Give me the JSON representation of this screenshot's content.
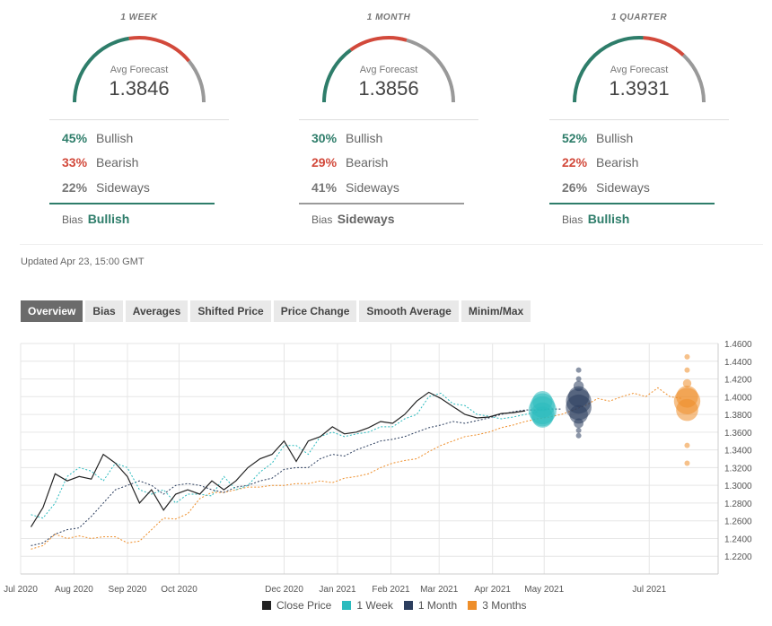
{
  "gauges": [
    {
      "period": "1 WEEK",
      "avg_label": "Avg Forecast",
      "avg_value": "1.3846",
      "bullish_pct": "45%",
      "bullish_label": "Bullish",
      "bearish_pct": "33%",
      "bearish_label": "Bearish",
      "sideways_pct": "22%",
      "sideways_label": "Sideways",
      "bias_label": "Bias",
      "bias_value": "Bullish",
      "bias_color": "#2e7d6a",
      "bias_rule_color": "#2e7d6a",
      "arc": [
        0.45,
        0.33,
        0.22
      ]
    },
    {
      "period": "1 MONTH",
      "avg_label": "Avg Forecast",
      "avg_value": "1.3856",
      "bullish_pct": "30%",
      "bullish_label": "Bullish",
      "bearish_pct": "29%",
      "bearish_label": "Bearish",
      "sideways_pct": "41%",
      "sideways_label": "Sideways",
      "bias_label": "Bias",
      "bias_value": "Sideways",
      "bias_color": "#666666",
      "bias_rule_color": "#9a9a9a",
      "arc": [
        0.3,
        0.29,
        0.41
      ]
    },
    {
      "period": "1 QUARTER",
      "avg_label": "Avg Forecast",
      "avg_value": "1.3931",
      "bullish_pct": "52%",
      "bullish_label": "Bullish",
      "bearish_pct": "22%",
      "bearish_label": "Bearish",
      "sideways_pct": "26%",
      "sideways_label": "Sideways",
      "bias_label": "Bias",
      "bias_value": "Bullish",
      "bias_color": "#2e7d6a",
      "bias_rule_color": "#2e7d6a",
      "arc": [
        0.52,
        0.22,
        0.26
      ]
    }
  ],
  "colors": {
    "bullish": "#2e7d6a",
    "bearish": "#d2493b",
    "sideways": "#999999"
  },
  "updated": "Updated Apr 23, 15:00 GMT",
  "tabs": [
    "Overview",
    "Bias",
    "Averages",
    "Shifted Price",
    "Price Change",
    "Smooth Average",
    "Minim/Max"
  ],
  "active_tab": "Overview",
  "chart_data": {
    "type": "line",
    "y_ticks": [
      "1.4600",
      "1.4400",
      "1.4200",
      "1.4000",
      "1.3800",
      "1.3600",
      "1.3400",
      "1.3200",
      "1.3000",
      "1.2800",
      "1.2600",
      "1.2400",
      "1.2200"
    ],
    "ylim": [
      1.2,
      1.46
    ],
    "x_tick_labels": [
      "Jul 2020",
      "Aug 2020",
      "Sep 2020",
      "Oct 2020",
      "Dec 2020",
      "Jan 2021",
      "Feb 2021",
      "Mar 2021",
      "Apr 2021",
      "May 2021",
      "Jul 2021"
    ],
    "x_tick_dates": [
      "2020-07-01",
      "2020-08-01",
      "2020-09-01",
      "2020-10-01",
      "2020-12-01",
      "2021-01-01",
      "2021-02-01",
      "2021-03-01",
      "2021-04-01",
      "2021-05-01",
      "2021-07-01"
    ],
    "xlim": [
      "2020-07-01",
      "2021-08-10"
    ],
    "grid": true,
    "series": [
      {
        "name": "Close Price",
        "color": "#222222",
        "dash": false,
        "points": [
          [
            "2020-07-07",
            1.253
          ],
          [
            "2020-07-14",
            1.275
          ],
          [
            "2020-07-21",
            1.313
          ],
          [
            "2020-07-28",
            1.305
          ],
          [
            "2020-08-04",
            1.31
          ],
          [
            "2020-08-11",
            1.307
          ],
          [
            "2020-08-18",
            1.335
          ],
          [
            "2020-08-25",
            1.325
          ],
          [
            "2020-09-01",
            1.31
          ],
          [
            "2020-09-08",
            1.28
          ],
          [
            "2020-09-15",
            1.295
          ],
          [
            "2020-09-22",
            1.272
          ],
          [
            "2020-09-29",
            1.29
          ],
          [
            "2020-10-06",
            1.295
          ],
          [
            "2020-10-13",
            1.29
          ],
          [
            "2020-10-20",
            1.305
          ],
          [
            "2020-10-27",
            1.295
          ],
          [
            "2020-11-03",
            1.305
          ],
          [
            "2020-11-10",
            1.32
          ],
          [
            "2020-11-17",
            1.33
          ],
          [
            "2020-11-24",
            1.335
          ],
          [
            "2020-12-01",
            1.35
          ],
          [
            "2020-12-08",
            1.327
          ],
          [
            "2020-12-15",
            1.35
          ],
          [
            "2020-12-22",
            1.355
          ],
          [
            "2020-12-29",
            1.366
          ],
          [
            "2021-01-05",
            1.358
          ],
          [
            "2021-01-12",
            1.36
          ],
          [
            "2021-01-19",
            1.365
          ],
          [
            "2021-01-26",
            1.372
          ],
          [
            "2021-02-02",
            1.37
          ],
          [
            "2021-02-09",
            1.38
          ],
          [
            "2021-02-16",
            1.395
          ],
          [
            "2021-02-23",
            1.405
          ],
          [
            "2021-03-02",
            1.398
          ],
          [
            "2021-03-09",
            1.389
          ],
          [
            "2021-03-16",
            1.38
          ],
          [
            "2021-03-23",
            1.376
          ],
          [
            "2021-03-30",
            1.377
          ],
          [
            "2021-04-06",
            1.381
          ],
          [
            "2021-04-13",
            1.382
          ],
          [
            "2021-04-20",
            1.384
          ]
        ]
      },
      {
        "name": "1 Week",
        "color": "#2bbbbe",
        "dash": true,
        "points": [
          [
            "2020-07-07",
            1.267
          ],
          [
            "2020-07-14",
            1.263
          ],
          [
            "2020-07-21",
            1.28
          ],
          [
            "2020-07-28",
            1.31
          ],
          [
            "2020-08-04",
            1.32
          ],
          [
            "2020-08-11",
            1.316
          ],
          [
            "2020-08-18",
            1.305
          ],
          [
            "2020-08-25",
            1.325
          ],
          [
            "2020-09-01",
            1.32
          ],
          [
            "2020-09-08",
            1.295
          ],
          [
            "2020-09-15",
            1.29
          ],
          [
            "2020-09-22",
            1.295
          ],
          [
            "2020-09-29",
            1.28
          ],
          [
            "2020-10-06",
            1.29
          ],
          [
            "2020-10-13",
            1.29
          ],
          [
            "2020-10-20",
            1.288
          ],
          [
            "2020-10-27",
            1.31
          ],
          [
            "2020-11-03",
            1.295
          ],
          [
            "2020-11-10",
            1.3
          ],
          [
            "2020-11-17",
            1.315
          ],
          [
            "2020-11-24",
            1.325
          ],
          [
            "2020-12-01",
            1.345
          ],
          [
            "2020-12-08",
            1.345
          ],
          [
            "2020-12-15",
            1.335
          ],
          [
            "2020-12-22",
            1.355
          ],
          [
            "2020-12-29",
            1.36
          ],
          [
            "2021-01-05",
            1.355
          ],
          [
            "2021-01-12",
            1.358
          ],
          [
            "2021-01-19",
            1.36
          ],
          [
            "2021-01-26",
            1.366
          ],
          [
            "2021-02-02",
            1.366
          ],
          [
            "2021-02-09",
            1.375
          ],
          [
            "2021-02-16",
            1.38
          ],
          [
            "2021-02-23",
            1.4
          ],
          [
            "2021-03-02",
            1.404
          ],
          [
            "2021-03-09",
            1.392
          ],
          [
            "2021-03-16",
            1.39
          ],
          [
            "2021-03-23",
            1.38
          ],
          [
            "2021-03-30",
            1.378
          ],
          [
            "2021-04-06",
            1.375
          ],
          [
            "2021-04-13",
            1.377
          ],
          [
            "2021-04-20",
            1.38
          ],
          [
            "2021-04-27",
            1.383
          ]
        ]
      },
      {
        "name": "1 Month",
        "color": "#2c3e5e",
        "dash": true,
        "points": [
          [
            "2020-07-07",
            1.232
          ],
          [
            "2020-07-14",
            1.235
          ],
          [
            "2020-07-21",
            1.245
          ],
          [
            "2020-07-28",
            1.25
          ],
          [
            "2020-08-04",
            1.252
          ],
          [
            "2020-08-11",
            1.265
          ],
          [
            "2020-08-18",
            1.28
          ],
          [
            "2020-08-25",
            1.295
          ],
          [
            "2020-09-01",
            1.3
          ],
          [
            "2020-09-08",
            1.305
          ],
          [
            "2020-09-15",
            1.3
          ],
          [
            "2020-09-22",
            1.29
          ],
          [
            "2020-09-29",
            1.3
          ],
          [
            "2020-10-06",
            1.302
          ],
          [
            "2020-10-13",
            1.3
          ],
          [
            "2020-10-20",
            1.295
          ],
          [
            "2020-10-27",
            1.292
          ],
          [
            "2020-11-03",
            1.298
          ],
          [
            "2020-11-10",
            1.3
          ],
          [
            "2020-11-17",
            1.305
          ],
          [
            "2020-11-24",
            1.308
          ],
          [
            "2020-12-01",
            1.318
          ],
          [
            "2020-12-08",
            1.32
          ],
          [
            "2020-12-15",
            1.32
          ],
          [
            "2020-12-22",
            1.33
          ],
          [
            "2020-12-29",
            1.335
          ],
          [
            "2021-01-05",
            1.333
          ],
          [
            "2021-01-12",
            1.34
          ],
          [
            "2021-01-19",
            1.345
          ],
          [
            "2021-01-26",
            1.35
          ],
          [
            "2021-02-02",
            1.352
          ],
          [
            "2021-02-09",
            1.355
          ],
          [
            "2021-02-16",
            1.36
          ],
          [
            "2021-02-23",
            1.365
          ],
          [
            "2021-03-02",
            1.368
          ],
          [
            "2021-03-09",
            1.372
          ],
          [
            "2021-03-16",
            1.37
          ],
          [
            "2021-03-23",
            1.373
          ],
          [
            "2021-03-30",
            1.376
          ],
          [
            "2021-04-06",
            1.38
          ],
          [
            "2021-04-13",
            1.383
          ],
          [
            "2021-04-20",
            1.385
          ],
          [
            "2021-04-27",
            1.385
          ],
          [
            "2021-05-04",
            1.386
          ],
          [
            "2021-05-11",
            1.386
          ]
        ]
      },
      {
        "name": "3 Months",
        "color": "#ee8e2a",
        "dash": true,
        "points": [
          [
            "2020-07-07",
            1.228
          ],
          [
            "2020-07-14",
            1.232
          ],
          [
            "2020-07-21",
            1.245
          ],
          [
            "2020-07-28",
            1.24
          ],
          [
            "2020-08-04",
            1.243
          ],
          [
            "2020-08-11",
            1.24
          ],
          [
            "2020-08-18",
            1.242
          ],
          [
            "2020-08-25",
            1.242
          ],
          [
            "2020-09-01",
            1.235
          ],
          [
            "2020-09-08",
            1.237
          ],
          [
            "2020-09-15",
            1.25
          ],
          [
            "2020-09-22",
            1.263
          ],
          [
            "2020-09-29",
            1.262
          ],
          [
            "2020-10-06",
            1.268
          ],
          [
            "2020-10-13",
            1.285
          ],
          [
            "2020-10-20",
            1.292
          ],
          [
            "2020-10-27",
            1.292
          ],
          [
            "2020-11-03",
            1.295
          ],
          [
            "2020-11-10",
            1.298
          ],
          [
            "2020-11-17",
            1.298
          ],
          [
            "2020-11-24",
            1.3
          ],
          [
            "2020-12-01",
            1.3
          ],
          [
            "2020-12-08",
            1.302
          ],
          [
            "2020-12-15",
            1.302
          ],
          [
            "2020-12-22",
            1.305
          ],
          [
            "2020-12-29",
            1.303
          ],
          [
            "2021-01-05",
            1.308
          ],
          [
            "2021-01-12",
            1.31
          ],
          [
            "2021-01-19",
            1.313
          ],
          [
            "2021-01-26",
            1.32
          ],
          [
            "2021-02-02",
            1.325
          ],
          [
            "2021-02-09",
            1.328
          ],
          [
            "2021-02-16",
            1.33
          ],
          [
            "2021-02-23",
            1.338
          ],
          [
            "2021-03-02",
            1.345
          ],
          [
            "2021-03-09",
            1.35
          ],
          [
            "2021-03-16",
            1.355
          ],
          [
            "2021-03-23",
            1.357
          ],
          [
            "2021-03-30",
            1.36
          ],
          [
            "2021-04-06",
            1.365
          ],
          [
            "2021-04-13",
            1.368
          ],
          [
            "2021-04-20",
            1.372
          ],
          [
            "2021-04-27",
            1.375
          ],
          [
            "2021-05-04",
            1.377
          ],
          [
            "2021-05-11",
            1.38
          ],
          [
            "2021-05-18",
            1.385
          ],
          [
            "2021-05-25",
            1.39
          ],
          [
            "2021-06-01",
            1.398
          ],
          [
            "2021-06-08",
            1.395
          ],
          [
            "2021-06-15",
            1.4
          ],
          [
            "2021-06-22",
            1.404
          ],
          [
            "2021-06-29",
            1.4
          ],
          [
            "2021-07-06",
            1.41
          ],
          [
            "2021-07-13",
            1.4
          ],
          [
            "2021-07-20",
            1.398
          ]
        ]
      }
    ],
    "forecast_bubbles": [
      {
        "series": "1 Week",
        "date": "2021-04-30",
        "color": "#2bbbbe",
        "values": [
          1.377,
          1.3846,
          1.39,
          1.395,
          1.38
        ]
      },
      {
        "series": "1 Month",
        "date": "2021-05-21",
        "color": "#2c3e5e",
        "values": [
          1.43,
          1.42,
          1.412,
          1.4,
          1.395,
          1.388,
          1.38,
          1.37,
          1.362,
          1.356
        ]
      },
      {
        "series": "3 Months",
        "date": "2021-07-23",
        "color": "#ee8e2a",
        "values": [
          1.445,
          1.43,
          1.415,
          1.4,
          1.395,
          1.385,
          1.345,
          1.325
        ]
      }
    ],
    "legend": [
      "Close Price",
      "1 Week",
      "1 Month",
      "3 Months"
    ],
    "legend_colors": [
      "#222222",
      "#2bbbbe",
      "#2c3e5e",
      "#ee8e2a"
    ]
  }
}
